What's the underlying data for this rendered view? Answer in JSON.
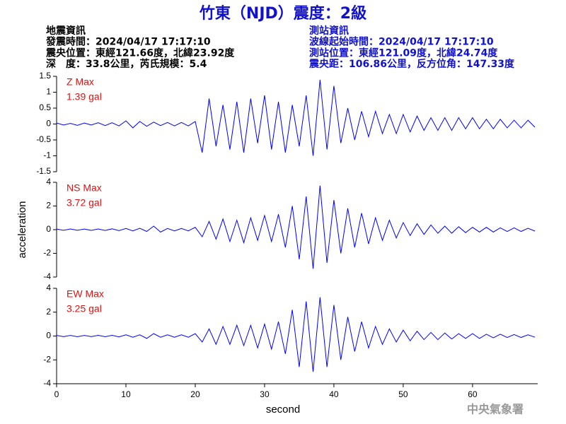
{
  "header": {
    "title": "竹東（NJD）震度：2級"
  },
  "event_info": [
    "地震資訊",
    "發震時間：2024/04/17 17:17:10",
    "震央位置：東經121.66度，北緯23.92度",
    "深　度：33.8公里，芮氏規模：5.4"
  ],
  "station_info": [
    "測站資訊",
    "波線起始時間：2024/04/17 17:17:10",
    "測站位置：東經121.09度，北緯24.74度",
    "震央距：106.86公里，反方位角：147.33度"
  ],
  "footer": {
    "watermark": "中央氣象署"
  },
  "chart_data": [
    {
      "type": "line",
      "annotations": [
        "Z Max",
        "1.39 gal"
      ],
      "xlim": [
        0,
        69.4
      ],
      "ylim": [
        -1.5,
        1.5
      ],
      "yticks": [
        -1.5,
        -1,
        -0.5,
        0,
        0.5,
        1,
        1.5
      ],
      "x": [
        0,
        1,
        2,
        3,
        4,
        5,
        6,
        7,
        8,
        9,
        10,
        11,
        12,
        13,
        14,
        15,
        16,
        17,
        18,
        19,
        20,
        21,
        22,
        23,
        24,
        25,
        26,
        27,
        28,
        29,
        30,
        31,
        32,
        33,
        34,
        35,
        36,
        37,
        38,
        39,
        40,
        41,
        42,
        43,
        44,
        45,
        46,
        47,
        48,
        49,
        50,
        51,
        52,
        53,
        54,
        55,
        56,
        57,
        58,
        59,
        60,
        61,
        62,
        63,
        64,
        65,
        66,
        67,
        68,
        69
      ],
      "series": [
        {
          "color": "#0000ff",
          "values": [
            0.03,
            -0.03,
            0.02,
            -0.04,
            0.03,
            -0.03,
            0.04,
            -0.05,
            0.04,
            -0.06,
            0.1,
            -0.12,
            0.08,
            -0.07,
            0.06,
            -0.05,
            0.05,
            -0.06,
            0.05,
            -0.06,
            0.08,
            -0.9,
            0.8,
            -0.7,
            0.6,
            -0.8,
            0.7,
            -0.9,
            0.8,
            -0.6,
            0.9,
            -0.8,
            0.7,
            -0.9,
            0.6,
            -0.7,
            0.9,
            -1.0,
            1.39,
            -0.8,
            1.2,
            -0.6,
            0.5,
            -0.5,
            0.4,
            -0.4,
            0.4,
            -0.3,
            0.3,
            -0.3,
            0.3,
            -0.25,
            0.25,
            -0.2,
            0.2,
            -0.2,
            0.2,
            -0.2,
            0.2,
            -0.15,
            0.2,
            -0.15,
            0.15,
            -0.15,
            0.15,
            -0.12,
            0.12,
            -0.12,
            0.12,
            -0.1
          ]
        }
      ]
    },
    {
      "type": "line",
      "annotations": [
        "NS Max",
        "3.72 gal"
      ],
      "ylabel": "acceleration",
      "xlim": [
        0,
        69.4
      ],
      "ylim": [
        -4,
        4
      ],
      "yticks": [
        -4,
        -2,
        0,
        2,
        4
      ],
      "x": [
        0,
        1,
        2,
        3,
        4,
        5,
        6,
        7,
        8,
        9,
        10,
        11,
        12,
        13,
        14,
        15,
        16,
        17,
        18,
        19,
        20,
        21,
        22,
        23,
        24,
        25,
        26,
        27,
        28,
        29,
        30,
        31,
        32,
        33,
        34,
        35,
        36,
        37,
        38,
        39,
        40,
        41,
        42,
        43,
        44,
        45,
        46,
        47,
        48,
        49,
        50,
        51,
        52,
        53,
        54,
        55,
        56,
        57,
        58,
        59,
        60,
        61,
        62,
        63,
        64,
        65,
        66,
        67,
        68,
        69
      ],
      "series": [
        {
          "color": "#0000ff",
          "values": [
            0.05,
            -0.05,
            0.06,
            -0.05,
            0.05,
            -0.06,
            0.06,
            -0.07,
            0.07,
            -0.08,
            0.1,
            -0.1,
            0.12,
            -0.15,
            0.3,
            -0.2,
            0.1,
            -0.1,
            0.1,
            -0.1,
            0.2,
            -0.6,
            0.7,
            -0.8,
            0.9,
            -1.0,
            0.8,
            -1.1,
            1.0,
            -0.9,
            1.2,
            -1.0,
            1.3,
            -1.5,
            2.0,
            -2.5,
            2.8,
            -3.3,
            3.72,
            -2.8,
            2.5,
            -2.0,
            1.8,
            -1.5,
            1.4,
            -1.2,
            1.0,
            -0.9,
            0.8,
            -0.7,
            0.6,
            -0.5,
            0.5,
            -0.4,
            0.4,
            -0.3,
            0.3,
            -0.3,
            0.25,
            -0.25,
            0.2,
            -0.2,
            0.2,
            -0.2,
            0.15,
            -0.15,
            0.15,
            -0.15,
            0.12,
            -0.12
          ]
        }
      ]
    },
    {
      "type": "line",
      "annotations": [
        "EW Max",
        "3.25 gal"
      ],
      "xlabel": "second",
      "xlim": [
        0,
        69.4
      ],
      "ylim": [
        -4,
        4
      ],
      "yticks": [
        -4,
        -2,
        0,
        2,
        4
      ],
      "xticks": [
        0,
        10,
        20,
        30,
        40,
        50,
        60
      ],
      "x": [
        0,
        1,
        2,
        3,
        4,
        5,
        6,
        7,
        8,
        9,
        10,
        11,
        12,
        13,
        14,
        15,
        16,
        17,
        18,
        19,
        20,
        21,
        22,
        23,
        24,
        25,
        26,
        27,
        28,
        29,
        30,
        31,
        32,
        33,
        34,
        35,
        36,
        37,
        38,
        39,
        40,
        41,
        42,
        43,
        44,
        45,
        46,
        47,
        48,
        49,
        50,
        51,
        52,
        53,
        54,
        55,
        56,
        57,
        58,
        59,
        60,
        61,
        62,
        63,
        64,
        65,
        66,
        67,
        68,
        69
      ],
      "series": [
        {
          "color": "#0000ff",
          "values": [
            0.05,
            -0.05,
            0.05,
            -0.06,
            0.05,
            -0.05,
            0.06,
            -0.06,
            0.06,
            -0.07,
            0.1,
            -0.1,
            0.1,
            -0.2,
            0.2,
            -0.1,
            0.1,
            -0.1,
            0.1,
            -0.1,
            0.2,
            -0.5,
            0.6,
            -0.7,
            0.8,
            -0.7,
            0.9,
            -0.8,
            0.9,
            -1.0,
            1.0,
            -1.1,
            1.2,
            -1.5,
            2.2,
            -2.6,
            2.9,
            -3.0,
            3.25,
            -2.6,
            2.6,
            -2.0,
            1.6,
            -1.3,
            1.2,
            -1.0,
            0.8,
            -0.7,
            0.6,
            -0.5,
            0.5,
            -0.4,
            0.4,
            -0.3,
            0.3,
            -0.3,
            0.25,
            -0.25,
            0.2,
            -0.2,
            0.2,
            -0.2,
            0.15,
            -0.15,
            0.15,
            -0.12,
            0.12,
            -0.12,
            0.1,
            -0.1
          ]
        }
      ]
    }
  ]
}
